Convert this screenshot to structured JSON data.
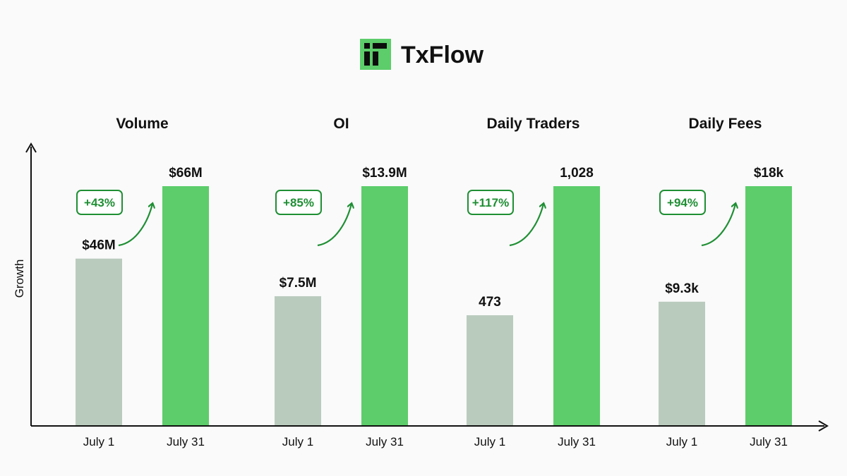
{
  "brand": {
    "name": "TxFlow",
    "logo_icon": "txflow-logo-icon",
    "logo_color": "#5ccd6a"
  },
  "chart_data": {
    "type": "bar",
    "ylabel": "Growth",
    "xlabel": "",
    "grid": false,
    "legend": "none",
    "colors": {
      "before": "#b9cbbd",
      "after": "#5ccd6a",
      "growth": "#1f8f34"
    },
    "categories": [
      "July 1",
      "July 31"
    ],
    "groups": [
      {
        "title": "Volume",
        "values": [
          46,
          66
        ],
        "labels": [
          "$46M",
          "$66M"
        ],
        "growth": "+43%"
      },
      {
        "title": "OI",
        "values": [
          7.5,
          13.9
        ],
        "labels": [
          "$7.5M",
          "$13.9M"
        ],
        "growth": "+85%"
      },
      {
        "title": "Daily Traders",
        "values": [
          473,
          1028
        ],
        "labels": [
          "473",
          "1,028"
        ],
        "growth": "+117%"
      },
      {
        "title": "Daily Fees",
        "values": [
          9.3,
          18
        ],
        "labels": [
          "$9.3k",
          "$18k"
        ],
        "growth": "+94%"
      }
    ]
  }
}
